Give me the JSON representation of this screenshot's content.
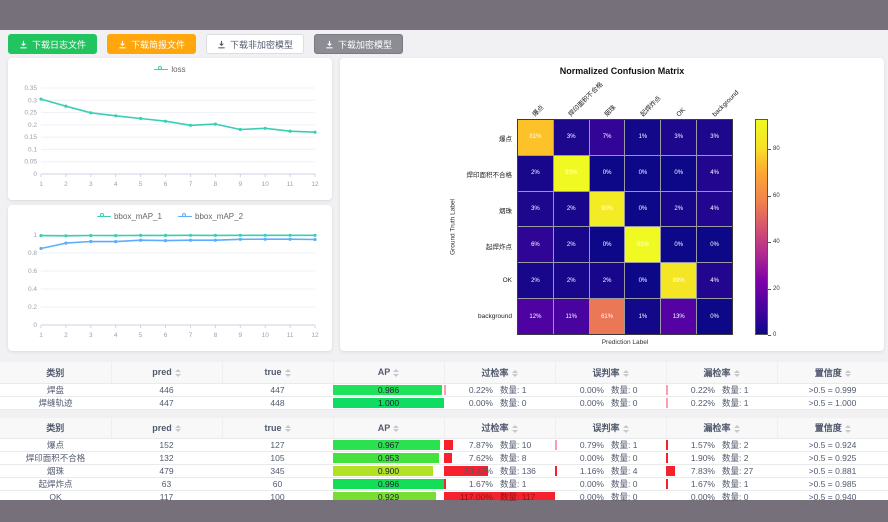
{
  "colors": {
    "topbar": "#76707a",
    "page_bg": "#f1f1f3",
    "red_bar": "#f5222d",
    "red_bar_faint": "#ff9db0",
    "teal": "#3acfb4",
    "blue": "#5cadff"
  },
  "buttons": [
    {
      "name": "download-log-button",
      "label": "下载日志文件",
      "bg": "#21c45f",
      "fg": "#ffffff",
      "border": "#21c45f"
    },
    {
      "name": "download-report-button",
      "label": "下载简报文件",
      "bg": "#ffa60d",
      "fg": "#ffffff",
      "border": "#ffa60d"
    },
    {
      "name": "download-plain-model-button",
      "label": "下载非加密模型",
      "bg": "#ffffff",
      "fg": "#515a6e",
      "border": "#dcdee2"
    },
    {
      "name": "download-encrypted-model-button",
      "label": "下载加密模型",
      "bg": "#8c8c94",
      "fg": "#ffffff",
      "border": "#7a7a82"
    }
  ],
  "chart_data": [
    {
      "type": "line",
      "title": "loss",
      "x": [
        1,
        2,
        3,
        4,
        5,
        6,
        7,
        8,
        9,
        10,
        11,
        12
      ],
      "ylim": [
        0,
        0.35
      ],
      "yticks": [
        0,
        0.05,
        0.1,
        0.15,
        0.2,
        0.25,
        0.3,
        0.35
      ],
      "legend_position": "top",
      "grid": true,
      "series": [
        {
          "name": "loss",
          "color": "#3acfb4",
          "values": [
            0.305,
            0.276,
            0.249,
            0.237,
            0.226,
            0.215,
            0.198,
            0.203,
            0.181,
            0.186,
            0.174,
            0.17
          ]
        }
      ]
    },
    {
      "type": "line",
      "title": "bbox_mAP",
      "x": [
        1,
        2,
        3,
        4,
        5,
        6,
        7,
        8,
        9,
        10,
        11,
        12
      ],
      "ylim": [
        0,
        1
      ],
      "yticks": [
        0,
        0.2,
        0.4,
        0.6,
        0.8,
        1
      ],
      "legend_position": "top",
      "grid": true,
      "series": [
        {
          "name": "bbox_mAP_1",
          "color": "#3acfb4",
          "values": [
            0.993,
            0.991,
            0.995,
            0.993,
            0.996,
            0.996,
            0.997,
            0.996,
            0.997,
            0.997,
            0.997,
            0.997
          ]
        },
        {
          "name": "bbox_mAP_2",
          "color": "#5cadff",
          "values": [
            0.85,
            0.91,
            0.928,
            0.927,
            0.942,
            0.938,
            0.942,
            0.942,
            0.952,
            0.953,
            0.953,
            0.95
          ]
        }
      ]
    },
    {
      "type": "heatmap",
      "title": "Normalized Confusion Matrix",
      "xlabel": "Prediction Label",
      "ylabel": "Ground Truth Label",
      "labels": [
        "爆点",
        "焊印面积不合格",
        "烟珠",
        "起焊炸点",
        "OK",
        "background"
      ],
      "unit": "%",
      "matrix": [
        [
          81,
          3,
          7,
          1,
          3,
          3
        ],
        [
          2,
          93,
          0,
          0,
          0,
          4
        ],
        [
          3,
          2,
          90,
          0,
          2,
          4
        ],
        [
          6,
          2,
          0,
          93,
          0,
          0
        ],
        [
          2,
          2,
          2,
          0,
          89,
          4
        ],
        [
          12,
          11,
          61,
          1,
          13,
          0
        ]
      ],
      "vmax": 93,
      "colorbar_ticks": [
        0,
        20,
        40,
        60,
        80
      ]
    }
  ],
  "tables": [
    {
      "headers": [
        "类别",
        "pred",
        "true",
        "AP",
        "过检率",
        "误判率",
        "漏检率",
        "置信度"
      ],
      "rows": [
        {
          "name": "焊盘",
          "pred": "446",
          "true": "447",
          "ap": "0.986",
          "ap_val": 0.986,
          "ap_color": "#1ee35a",
          "guo": {
            "pct": "0.22%",
            "num": 0.22,
            "count": "数量: 1"
          },
          "wu": {
            "pct": "0.00%",
            "num": 0,
            "count": "数量: 0"
          },
          "lou": {
            "pct": "0.22%",
            "num": 0.22,
            "count": "数量: 1"
          },
          "conf": ">0.5 = 0.999"
        },
        {
          "name": "焊缝轨迹",
          "pred": "447",
          "true": "448",
          "ap": "1.000",
          "ap_val": 1.0,
          "ap_color": "#0fdd62",
          "guo": {
            "pct": "0.00%",
            "num": 0,
            "count": "数量: 0"
          },
          "wu": {
            "pct": "0.00%",
            "num": 0,
            "count": "数量: 0"
          },
          "lou": {
            "pct": "0.22%",
            "num": 0.22,
            "count": "数量: 1"
          },
          "conf": ">0.5 = 1.000"
        }
      ]
    },
    {
      "headers": [
        "类别",
        "pred",
        "true",
        "AP",
        "过检率",
        "误判率",
        "漏检率",
        "置信度"
      ],
      "rows": [
        {
          "name": "爆点",
          "pred": "152",
          "true": "127",
          "ap": "0.967",
          "ap_val": 0.967,
          "ap_color": "#2ae24d",
          "guo": {
            "pct": "7.87%",
            "num": 7.87,
            "count": "数量: 10"
          },
          "wu": {
            "pct": "0.79%",
            "num": 0.79,
            "count": "数量: 1"
          },
          "lou": {
            "pct": "1.57%",
            "num": 1.57,
            "count": "数量: 2"
          },
          "conf": ">0.5 = 0.924"
        },
        {
          "name": "焊印面积不合格",
          "pred": "132",
          "true": "105",
          "ap": "0.953",
          "ap_val": 0.953,
          "ap_color": "#44e23e",
          "guo": {
            "pct": "7.62%",
            "num": 7.62,
            "count": "数量: 8"
          },
          "wu": {
            "pct": "0.00%",
            "num": 0,
            "count": "数量: 0"
          },
          "lou": {
            "pct": "1.90%",
            "num": 1.9,
            "count": "数量: 2"
          },
          "conf": ">0.5 = 0.925"
        },
        {
          "name": "烟珠",
          "pred": "479",
          "true": "345",
          "ap": "0.900",
          "ap_val": 0.9,
          "ap_color": "#b2e224",
          "guo": {
            "pct": "39.42%",
            "num": 39.42,
            "count": "数量: 136"
          },
          "wu": {
            "pct": "1.16%",
            "num": 1.16,
            "count": "数量: 4"
          },
          "lou": {
            "pct": "7.83%",
            "num": 7.83,
            "count": "数量: 27"
          },
          "conf": ">0.5 = 0.881"
        },
        {
          "name": "起焊炸点",
          "pred": "63",
          "true": "60",
          "ap": "0.996",
          "ap_val": 0.996,
          "ap_color": "#12df57",
          "guo": {
            "pct": "1.67%",
            "num": 1.67,
            "count": "数量: 1"
          },
          "wu": {
            "pct": "0.00%",
            "num": 0,
            "count": "数量: 0"
          },
          "lou": {
            "pct": "1.67%",
            "num": 1.67,
            "count": "数量: 1"
          },
          "conf": ">0.5 = 0.985"
        },
        {
          "name": "OK",
          "pred": "117",
          "true": "100",
          "ap": "0.929",
          "ap_val": 0.929,
          "ap_color": "#78df32",
          "guo": {
            "pct": "117.00%",
            "num": 117,
            "count": "数量: 117"
          },
          "wu": {
            "pct": "0.00%",
            "num": 0,
            "count": "数量: 0"
          },
          "lou": {
            "pct": "0.00%",
            "num": 0,
            "count": "数量: 0"
          },
          "conf": ">0.5 = 0.940"
        }
      ]
    }
  ]
}
